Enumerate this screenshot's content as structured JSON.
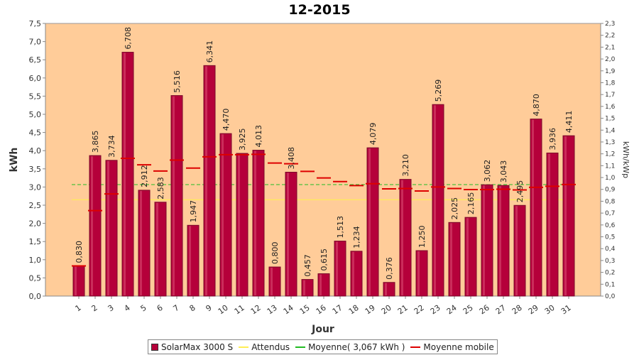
{
  "chart_data": {
    "type": "bar",
    "title": "12-2015",
    "xlabel": "Jour",
    "ylabel": "kWh",
    "ylabel_right": "kWh/kWp",
    "ylim": [
      0,
      7.5
    ],
    "ylim_right": [
      0,
      2.3
    ],
    "yticks": [
      "0,0",
      "0,5",
      "1,0",
      "1,5",
      "2,0",
      "2,5",
      "3,0",
      "3,5",
      "4,0",
      "4,5",
      "5,0",
      "5,5",
      "6,0",
      "6,5",
      "7,0",
      "7,5"
    ],
    "yticks_right": [
      "0,0",
      "0,1",
      "0,2",
      "0,3",
      "0,4",
      "0,5",
      "0,6",
      "0,7",
      "0,8",
      "0,9",
      "1,0",
      "1,1",
      "1,2",
      "1,3",
      "1,4",
      "1,5",
      "1,6",
      "1,7",
      "1,8",
      "1,9",
      "2,0",
      "2,1",
      "2,2",
      "2,3"
    ],
    "categories": [
      "1",
      "2",
      "3",
      "4",
      "5",
      "6",
      "7",
      "8",
      "9",
      "10",
      "11",
      "12",
      "13",
      "14",
      "15",
      "16",
      "17",
      "18",
      "19",
      "20",
      "21",
      "22",
      "23",
      "24",
      "25",
      "26",
      "27",
      "28",
      "29",
      "30",
      "31"
    ],
    "series": [
      {
        "name": "SolarMax 3000 S",
        "color": "#b5003a",
        "values": [
          0.83,
          3.865,
          3.734,
          6.708,
          2.912,
          2.583,
          5.516,
          1.947,
          6.341,
          4.47,
          3.925,
          4.013,
          0.8,
          3.408,
          0.457,
          0.615,
          1.513,
          1.234,
          4.079,
          0.376,
          3.21,
          1.25,
          5.269,
          2.025,
          2.165,
          3.062,
          3.043,
          2.495,
          4.87,
          3.936,
          4.411
        ],
        "labels": [
          "0,830",
          "3,865",
          "3,734",
          "6,708",
          "2,912",
          "2,583",
          "5,516",
          "1,947",
          "6,341",
          "4,470",
          "3,925",
          "4,013",
          "0,800",
          "3,408",
          "0,457",
          "0,615",
          "1,513",
          "1,234",
          "4,079",
          "0,376",
          "3,210",
          "1,250",
          "5,269",
          "2,025",
          "2,165",
          "3,062",
          "3,043",
          "2,495",
          "4,870",
          "3,936",
          "4,411"
        ]
      },
      {
        "name": "Attendus",
        "color": "#ffee55",
        "value": 2.65
      },
      {
        "name": "Moyenne( 3,067 kWh )",
        "color": "#22bb22",
        "value": 3.067
      },
      {
        "name": "Moyenne mobile",
        "color": "#dd0000",
        "values": [
          0.83,
          2.35,
          2.81,
          3.79,
          3.61,
          3.44,
          3.74,
          3.52,
          3.83,
          3.89,
          3.89,
          3.9,
          3.66,
          3.64,
          3.43,
          3.25,
          3.15,
          3.04,
          3.09,
          2.95,
          2.96,
          2.89,
          3.0,
          2.96,
          2.93,
          2.93,
          2.94,
          2.92,
          2.99,
          3.02,
          3.07
        ]
      }
    ],
    "plot_bg": "#ffcc99",
    "grid": false,
    "legend_position": "bottom"
  }
}
